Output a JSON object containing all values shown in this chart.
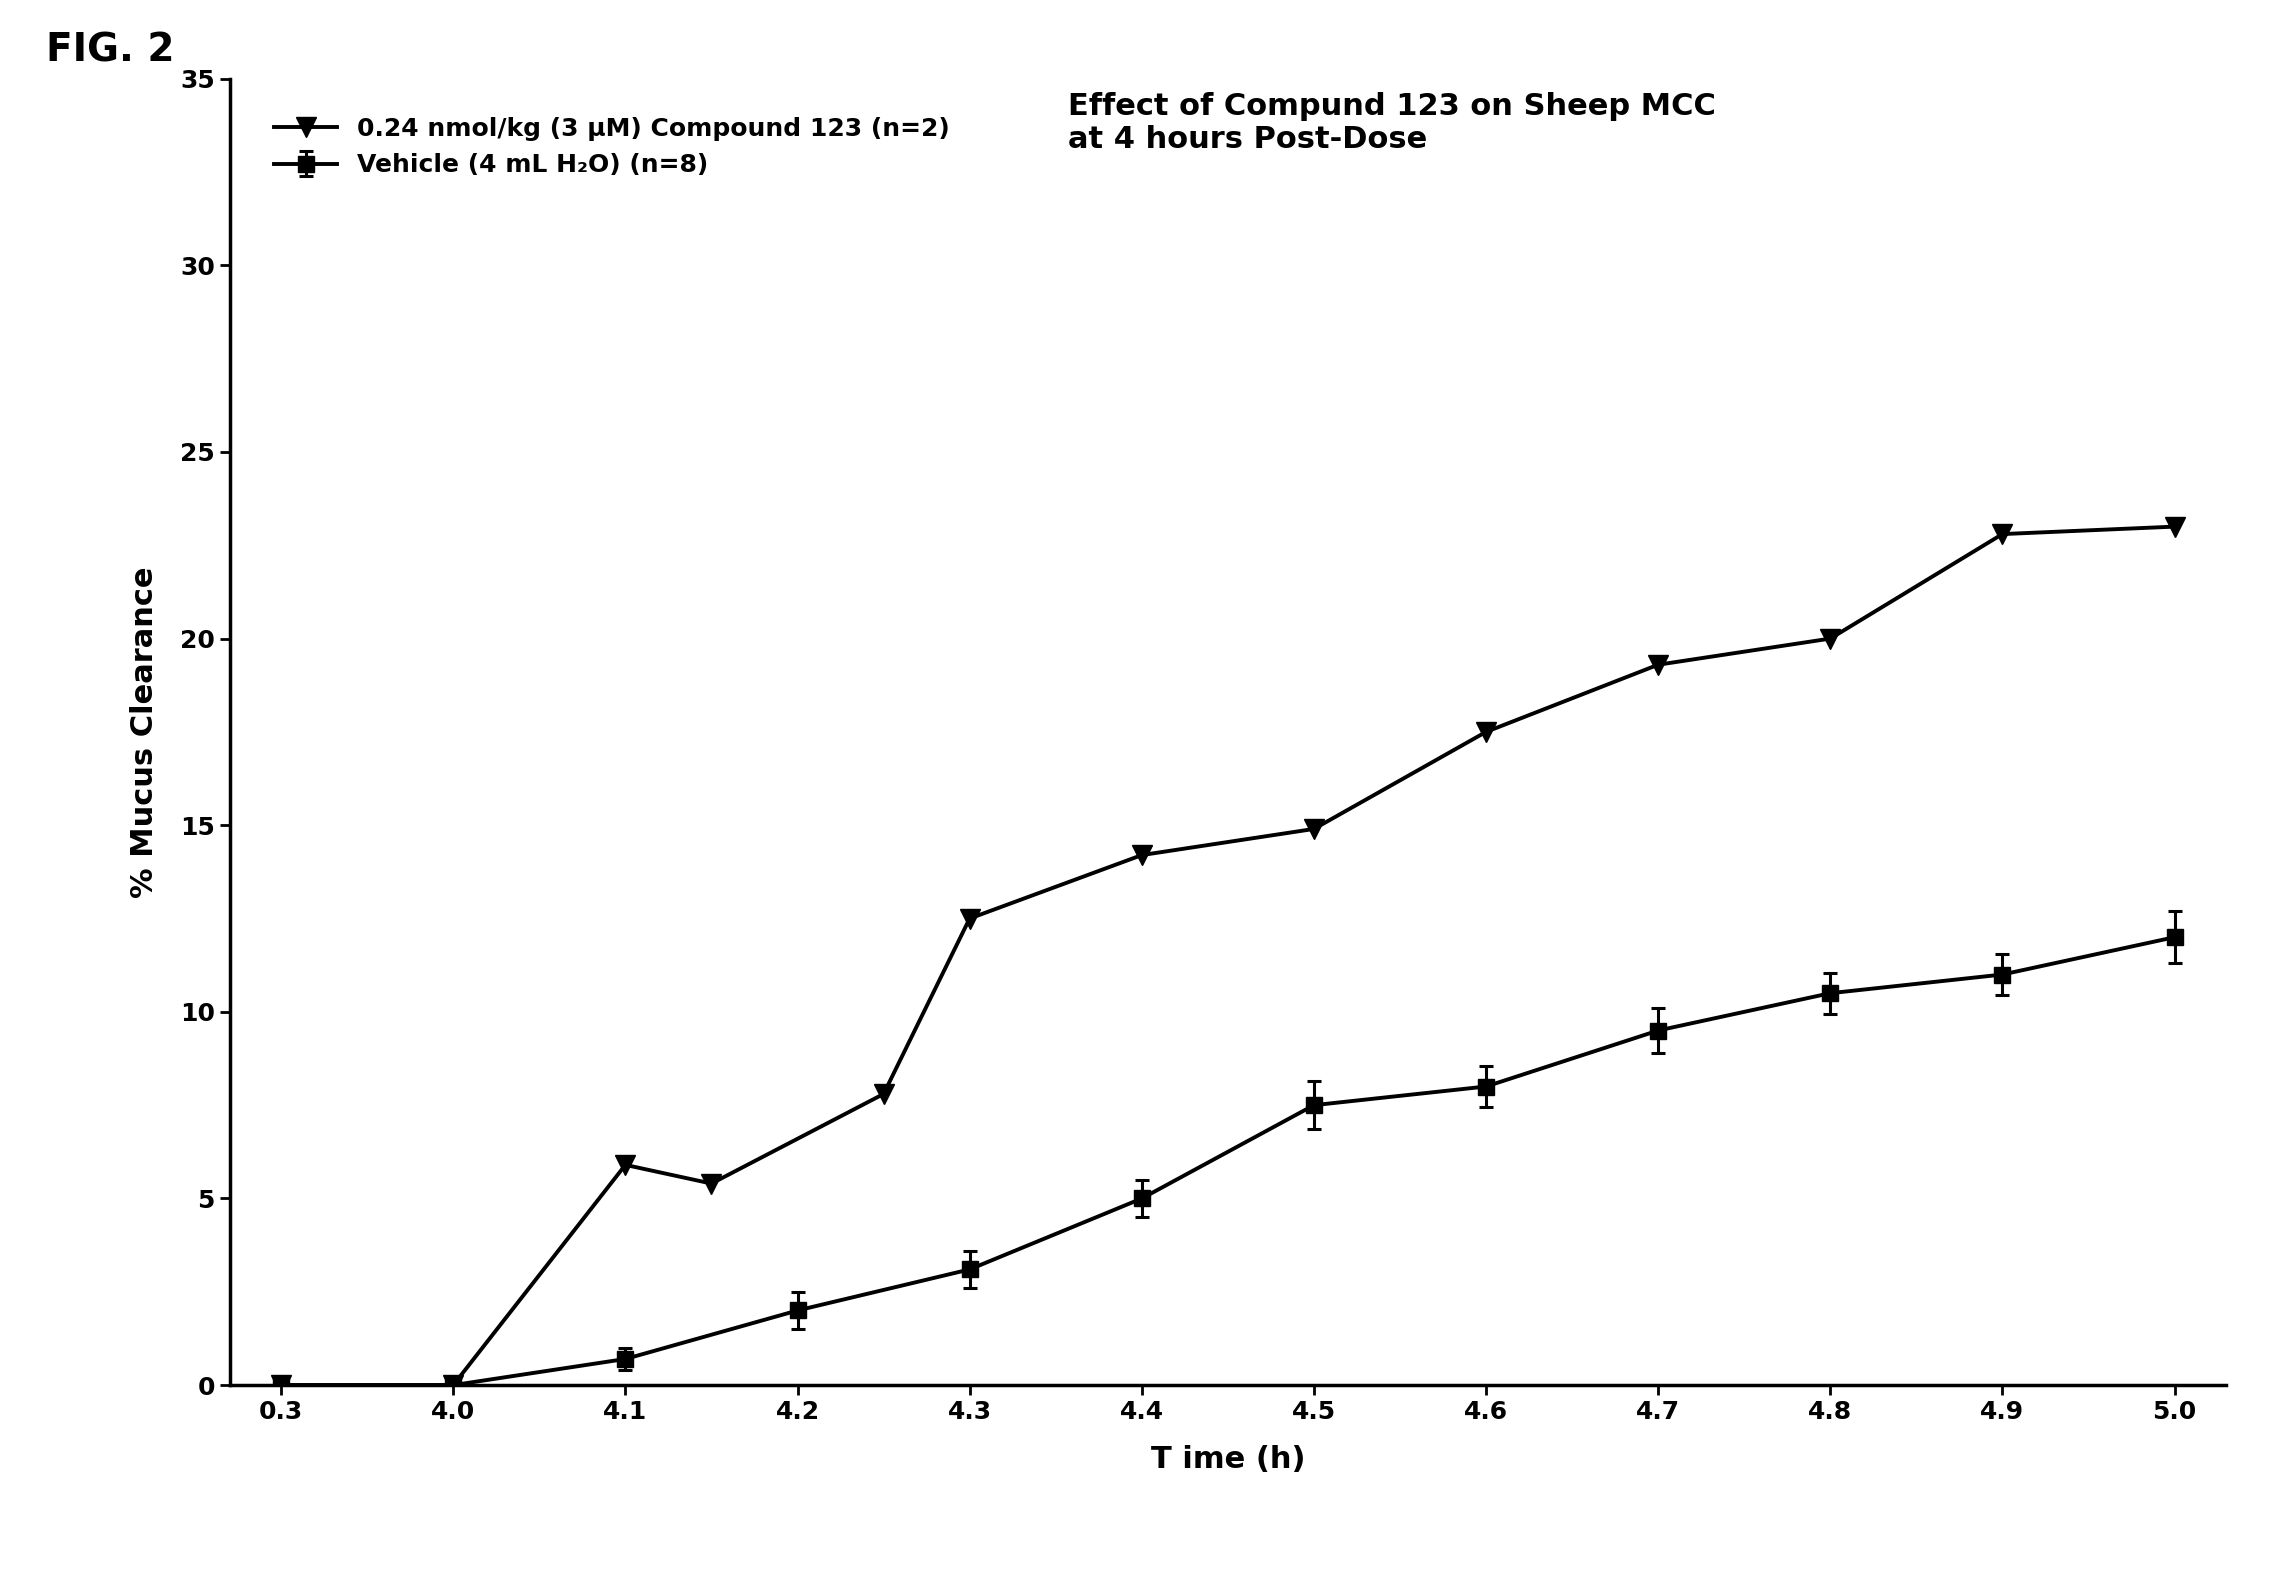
{
  "title_line1": "Effect of Compund 123 on Sheep MCC",
  "title_line2": "at 4 hours Post-Dose",
  "xlabel": "T ime (h)",
  "ylabel": "% Mucus Clearance",
  "fig_label": "FIG. 2",
  "ylim": [
    0,
    35
  ],
  "yticks": [
    0,
    5,
    10,
    15,
    20,
    25,
    30,
    35
  ],
  "compound_x": [
    0.3,
    4.0,
    4.1,
    4.15,
    4.25,
    4.3,
    4.4,
    4.5,
    4.6,
    4.7,
    4.8,
    4.9,
    5.0
  ],
  "compound_y": [
    0.0,
    0.0,
    5.9,
    5.4,
    7.8,
    12.5,
    14.2,
    14.9,
    17.5,
    19.3,
    20.0,
    22.8,
    23.0
  ],
  "vehicle_x": [
    0.3,
    4.0,
    4.1,
    4.2,
    4.3,
    4.4,
    4.5,
    4.6,
    4.7,
    4.8,
    4.9,
    5.0
  ],
  "vehicle_y": [
    0.0,
    0.0,
    0.7,
    2.0,
    3.1,
    5.0,
    7.5,
    8.0,
    9.5,
    10.5,
    11.0,
    12.0
  ],
  "vehicle_yerr": [
    0.0,
    0.1,
    0.3,
    0.5,
    0.5,
    0.5,
    0.65,
    0.55,
    0.6,
    0.55,
    0.55,
    0.7
  ],
  "legend_label1": "0.24 nmol/kg (3 μM) Compound 123 (n=2)",
  "legend_label2": "Vehicle (4 mL H₂O) (n=8)",
  "line_color": "#000000",
  "background_color": "#ffffff",
  "title_fontsize": 22,
  "label_fontsize": 22,
  "tick_fontsize": 18,
  "legend_fontsize": 18
}
